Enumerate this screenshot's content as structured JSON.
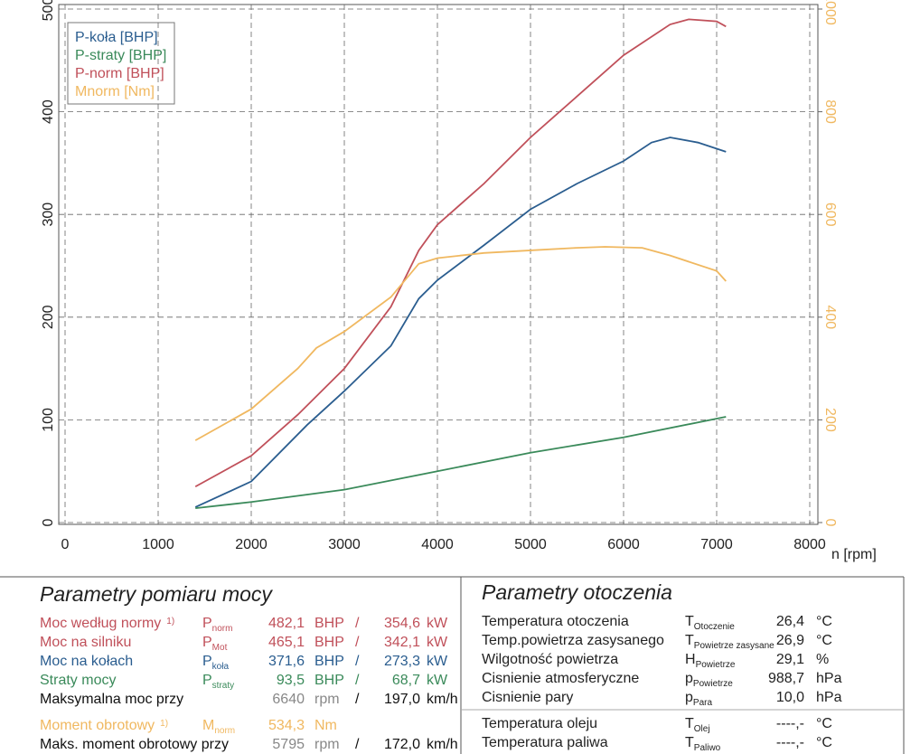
{
  "chart_data": {
    "type": "line",
    "xlabel": "n [rpm]",
    "xlim": [
      0,
      8000
    ],
    "xticks": [
      0,
      1000,
      2000,
      3000,
      4000,
      5000,
      6000,
      7000,
      8000
    ],
    "ylim": [
      0,
      500
    ],
    "yticks": [
      0,
      100,
      200,
      300,
      400,
      500
    ],
    "y2lim": [
      0,
      1000
    ],
    "y2ticks": [
      0,
      200,
      400,
      600,
      800,
      1000
    ],
    "grid": true,
    "legend": "upper left",
    "series": [
      {
        "name": "P-koła [BHP]",
        "color": "#2a5d8f",
        "x": [
          1400,
          2000,
          2600,
          3000,
          3500,
          3800,
          4000,
          4500,
          5000,
          5500,
          6000,
          6300,
          6500,
          6800,
          7100
        ],
        "values": [
          15,
          40,
          95,
          128,
          172,
          218,
          236,
          270,
          305,
          330,
          352,
          370,
          375,
          370,
          361
        ]
      },
      {
        "name": "P-straty [BHP]",
        "color": "#3a8a5a",
        "x": [
          1400,
          2000,
          3000,
          4000,
          5000,
          6000,
          7100
        ],
        "values": [
          14,
          20,
          32,
          50,
          68,
          83,
          103
        ]
      },
      {
        "name": "P-norm [BHP]",
        "color": "#c0505a",
        "x": [
          1400,
          2000,
          2500,
          3000,
          3500,
          3800,
          4000,
          4500,
          5000,
          5500,
          6000,
          6500,
          6700,
          7000,
          7100
        ],
        "values": [
          35,
          65,
          105,
          150,
          210,
          265,
          290,
          330,
          375,
          415,
          455,
          485,
          490,
          488,
          483
        ]
      },
      {
        "name": "Mnorm [Nm]",
        "color": "#f0b860",
        "axis": "y2",
        "x": [
          1400,
          2000,
          2500,
          2700,
          3000,
          3500,
          3800,
          4000,
          4500,
          5000,
          5500,
          5800,
          6200,
          6500,
          7000,
          7100
        ],
        "values": [
          160,
          221,
          300,
          340,
          372,
          439,
          504,
          515,
          525,
          530,
          535,
          537,
          535,
          520,
          490,
          470
        ]
      }
    ]
  },
  "power_table": {
    "title": "Parametry pomiaru mocy",
    "rows": [
      {
        "label": "Moc według normy",
        "note": "1)",
        "symbol": "P",
        "sub": "norm",
        "value": "482,1",
        "unit": "BHP",
        "sep": "/",
        "value2": "354,6",
        "unit2": "kW",
        "color": "#c0505a"
      },
      {
        "label": "Moc na silniku",
        "symbol": "P",
        "sub": "Mot",
        "value": "465,1",
        "unit": "BHP",
        "sep": "/",
        "value2": "342,1",
        "unit2": "kW",
        "color": "#c0505a"
      },
      {
        "label": "Moc na kołach",
        "symbol": "P",
        "sub": "koła",
        "value": "371,6",
        "unit": "BHP",
        "sep": "/",
        "value2": "273,3",
        "unit2": "kW",
        "color": "#2a5d8f"
      },
      {
        "label": "Straty mocy",
        "symbol": "P",
        "sub": "straty",
        "value": "93,5",
        "unit": "BHP",
        "sep": "/",
        "value2": "68,7",
        "unit2": "kW",
        "color": "#3a8a5a"
      },
      {
        "label": "Maksymalna moc przy",
        "value": "6640",
        "unit": "rpm",
        "sep": "/",
        "value2": "197,0",
        "unit2": "km/h",
        "color": "#111111"
      },
      {
        "label": "Moment obrotowy",
        "note": "1)",
        "symbol": "M",
        "sub": "norm",
        "value": "534,3",
        "unit": "Nm",
        "color": "#f0b860"
      },
      {
        "label": "Maks. moment obrotowy przy",
        "value": "5795",
        "unit": "rpm",
        "sep": "/",
        "value2": "172,0",
        "unit2": "km/h",
        "color": "#111111"
      }
    ]
  },
  "env_table": {
    "title": "Parametry otoczenia",
    "rows": [
      {
        "label": "Temperatura otoczenia",
        "symbol": "T",
        "sub": "Otoczenie",
        "value": "26,4",
        "unit": "°C"
      },
      {
        "label": "Temp.powietrza zasysanego",
        "symbol": "T",
        "sub": "Powietrze zasysane",
        "value": "26,9",
        "unit": "°C"
      },
      {
        "label": "Wilgotność powietrza",
        "symbol": "H",
        "sub": "Powietrze",
        "value": "29,1",
        "unit": "%"
      },
      {
        "label": "Cisnienie atmosferyczne",
        "symbol": "p",
        "sub": "Powietrze",
        "value": "988,7",
        "unit": "hPa"
      },
      {
        "label": "Cisnienie pary",
        "symbol": "p",
        "sub": "Para",
        "value": "10,0",
        "unit": "hPa"
      },
      {
        "label": "Temperatura oleju",
        "symbol": "T",
        "sub": "Olej",
        "value": "----,-",
        "unit": "°C"
      },
      {
        "label": "Temperatura paliwa",
        "symbol": "T",
        "sub": "Paliwo",
        "value": "----,-",
        "unit": "°C"
      }
    ]
  }
}
